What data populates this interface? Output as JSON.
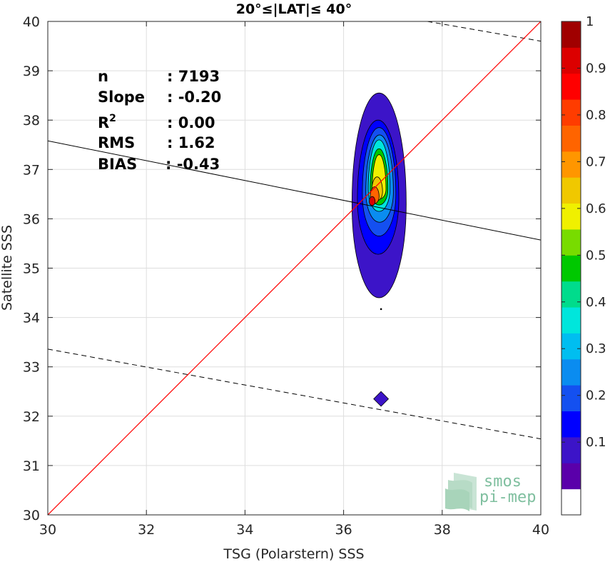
{
  "chart_data": {
    "type": "contour",
    "title": "20°≤|LAT|≤ 40°",
    "xlabel": "TSG (Polarstern) SSS",
    "ylabel": "Satellite SSS",
    "xlim": [
      30,
      40
    ],
    "ylim": [
      30,
      40
    ],
    "xticks": [
      30,
      32,
      34,
      36,
      38,
      40
    ],
    "yticks": [
      30,
      31,
      32,
      33,
      34,
      35,
      36,
      37,
      38,
      39,
      40
    ],
    "grid": true,
    "stats": [
      {
        "label": "n",
        "value": ": 7193"
      },
      {
        "label": "Slope",
        "value": ": -0.20"
      },
      {
        "label": "R",
        "sup": "2",
        "value": ": 0.00"
      },
      {
        "label": "RMS",
        "value": ": 1.62"
      },
      {
        "label": "BIAS",
        "value": ": -0.43"
      }
    ],
    "lines": {
      "identity": {
        "x": [
          30,
          40
        ],
        "y": [
          30,
          40
        ],
        "color": "#ff0000"
      },
      "fit": {
        "x": [
          30,
          40
        ],
        "y": [
          37.58,
          35.57
        ],
        "color": "#000000"
      },
      "upper_bound": {
        "x": [
          37.7,
          40
        ],
        "y": [
          40.0,
          39.6
        ],
        "color": "#000000",
        "style": "dashed"
      },
      "lower_bound": {
        "x": [
          30,
          40
        ],
        "y": [
          33.36,
          31.54
        ],
        "color": "#000000",
        "style": "dashed"
      }
    },
    "density_center": {
      "x": 36.6,
      "y": 36.3
    },
    "colorbar": {
      "ticks": [
        "0.1",
        "0.2",
        "0.3",
        "0.4",
        "0.5",
        "0.6",
        "0.7",
        "0.8",
        "0.9",
        "1"
      ],
      "colors": [
        "#ffffff",
        "#5a00aa",
        "#3c14c8",
        "#0000ff",
        "#1450f0",
        "#0a8cf0",
        "#00bef0",
        "#00e6dc",
        "#00dc8c",
        "#00c800",
        "#78dc00",
        "#f0f000",
        "#f0c800",
        "#ff9600",
        "#ff6400",
        "#ff3c00",
        "#ff0000",
        "#dc0000",
        "#a00000"
      ]
    },
    "contour_levels": [
      {
        "level": 0.05,
        "color": "#3c14c8",
        "rx": 0.55,
        "ryTop": 2.25,
        "ryBot": 1.9,
        "cx": 36.72,
        "cy": 36.3
      },
      {
        "level": 0.15,
        "color": "#0000ff",
        "rx": 0.42,
        "ryTop": 1.6,
        "ryBot": 1.12,
        "cx": 36.7,
        "cy": 36.4
      },
      {
        "level": 0.25,
        "color": "#1450f0",
        "rx": 0.34,
        "ryTop": 1.35,
        "ryBot": 0.85,
        "cx": 36.72,
        "cy": 36.5
      },
      {
        "level": 0.35,
        "color": "#0a8cf0",
        "rx": 0.28,
        "ryTop": 1.15,
        "ryBot": 0.62,
        "cx": 36.73,
        "cy": 36.55
      },
      {
        "level": 0.45,
        "color": "#00e6dc",
        "rx": 0.22,
        "ryTop": 1.0,
        "ryBot": 0.45,
        "cx": 36.72,
        "cy": 36.6
      },
      {
        "level": 0.55,
        "color": "#00c800",
        "rx": 0.18,
        "ryTop": 0.82,
        "ryBot": 0.32,
        "cx": 36.72,
        "cy": 36.6
      },
      {
        "level": 0.65,
        "color": "#f0f000",
        "rx": 0.14,
        "ryTop": 0.7,
        "ryBot": 0.2,
        "cx": 36.72,
        "cy": 36.6
      },
      {
        "level": 0.75,
        "color": "#f0c800",
        "rx": 0.11,
        "ryTop": 0.3,
        "ryBot": 0.18,
        "cx": 36.68,
        "cy": 36.55
      },
      {
        "level": 0.85,
        "color": "#ff6400",
        "rx": 0.09,
        "ryTop": 0.2,
        "ryBot": 0.14,
        "cx": 36.63,
        "cy": 36.45
      },
      {
        "level": 0.95,
        "color": "#dc0000",
        "rx": 0.06,
        "ryTop": 0.1,
        "ryBot": 0.08,
        "cx": 36.58,
        "cy": 36.35
      }
    ],
    "secondary_blob": {
      "x": 36.76,
      "y": 32.35,
      "rx": 0.15,
      "ry": 0.15,
      "color": "#3c14c8"
    },
    "outlier_dot": {
      "x": 36.76,
      "y": 34.17
    }
  },
  "logo": {
    "line1": "smos",
    "line2": "pi-mep"
  }
}
